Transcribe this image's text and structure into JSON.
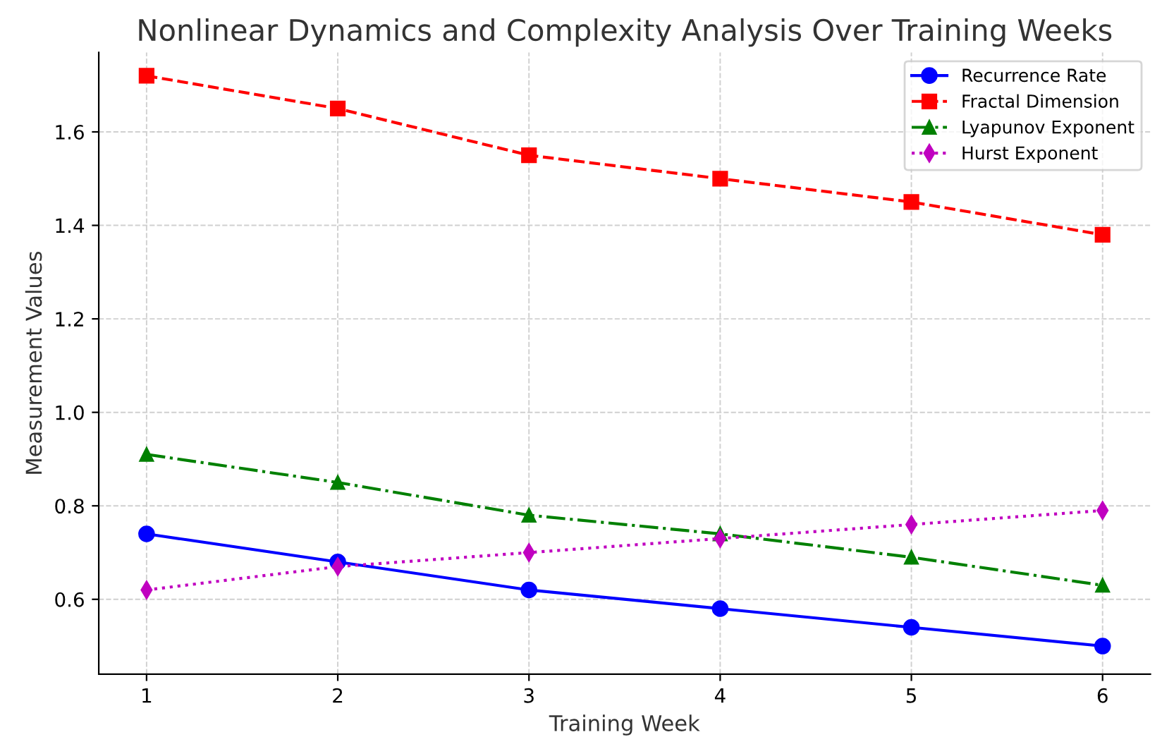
{
  "chart_data": {
    "type": "line",
    "title": "Nonlinear Dynamics and Complexity Analysis Over Training Weeks",
    "xlabel": "Training Week",
    "ylabel": "Measurement Values",
    "x": [
      1,
      2,
      3,
      4,
      5,
      6
    ],
    "series": [
      {
        "name": "Recurrence Rate",
        "color": "#0000ff",
        "marker": "circle",
        "line_style": "solid",
        "values": [
          0.74,
          0.68,
          0.62,
          0.58,
          0.54,
          0.5
        ]
      },
      {
        "name": "Fractal Dimension",
        "color": "#ff0000",
        "marker": "square",
        "line_style": "dashed",
        "values": [
          1.72,
          1.65,
          1.55,
          1.5,
          1.45,
          1.38
        ]
      },
      {
        "name": "Lyapunov Exponent",
        "color": "#008000",
        "marker": "triangle",
        "line_style": "dashdot",
        "values": [
          0.91,
          0.85,
          0.78,
          0.74,
          0.69,
          0.63
        ]
      },
      {
        "name": "Hurst Exponent",
        "color": "#c000c0",
        "marker": "diamond",
        "line_style": "dotted",
        "values": [
          0.62,
          0.67,
          0.7,
          0.73,
          0.76,
          0.79
        ]
      }
    ],
    "xlim": [
      0.75,
      6.25
    ],
    "ylim": [
      0.44,
      1.77
    ],
    "xticks": [
      1,
      2,
      3,
      4,
      5,
      6
    ],
    "yticks": [
      0.6,
      0.8,
      {
        "value": 1,
        "label": "1.0"
      },
      1.2,
      1.4,
      1.6
    ],
    "grid": true,
    "legend": "top right"
  }
}
